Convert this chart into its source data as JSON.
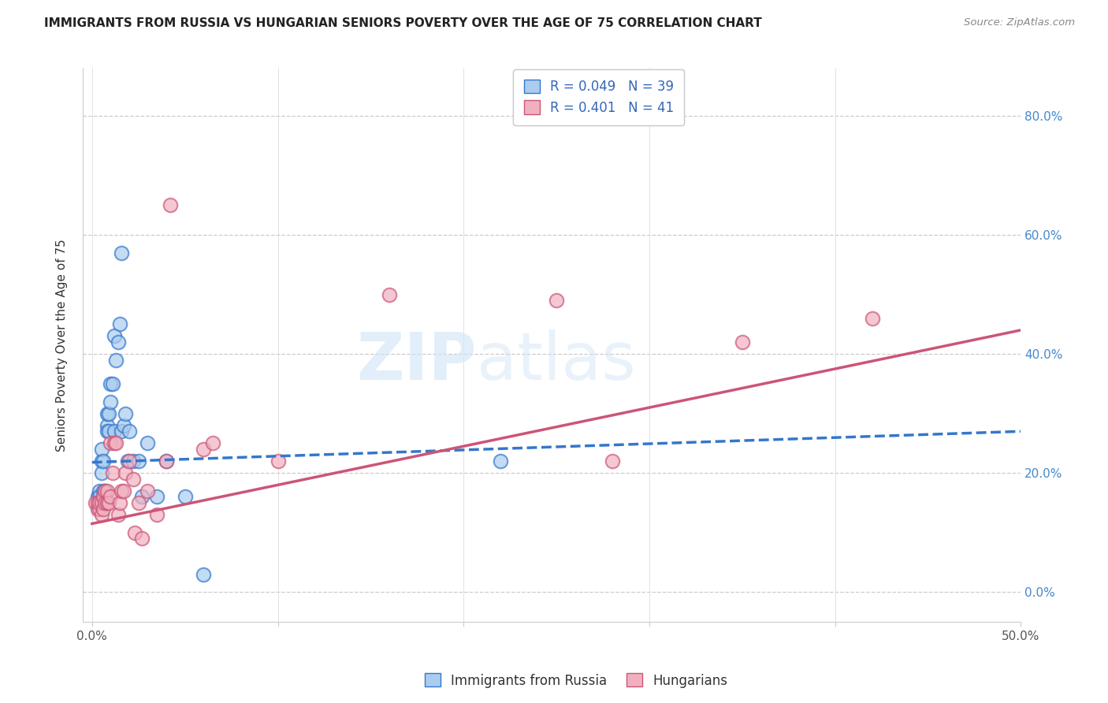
{
  "title": "IMMIGRANTS FROM RUSSIA VS HUNGARIAN SENIORS POVERTY OVER THE AGE OF 75 CORRELATION CHART",
  "source": "Source: ZipAtlas.com",
  "ylabel": "Seniors Poverty Over the Age of 75",
  "y_ticks": [
    0.0,
    0.2,
    0.4,
    0.6,
    0.8
  ],
  "y_tick_labels_right": [
    "0.0%",
    "20.0%",
    "40.0%",
    "60.0%",
    "80.0%"
  ],
  "x_ticks": [
    0.0,
    0.1,
    0.2,
    0.3,
    0.4,
    0.5
  ],
  "x_tick_labels": [
    "0.0%",
    "",
    "",
    "",
    "",
    "50.0%"
  ],
  "xlim": [
    -0.005,
    0.5
  ],
  "ylim": [
    -0.05,
    0.88
  ],
  "legend1_label": "R = 0.049   N = 39",
  "legend2_label": "R = 0.401   N = 41",
  "legend_bottom": [
    "Immigrants from Russia",
    "Hungarians"
  ],
  "blue_color": "#aaccee",
  "pink_color": "#f0b0c0",
  "blue_line_color": "#3377cc",
  "pink_line_color": "#cc5577",
  "russia_scatter_x": [
    0.003,
    0.004,
    0.004,
    0.005,
    0.005,
    0.005,
    0.006,
    0.006,
    0.007,
    0.007,
    0.007,
    0.008,
    0.008,
    0.008,
    0.009,
    0.009,
    0.01,
    0.01,
    0.011,
    0.012,
    0.012,
    0.013,
    0.014,
    0.015,
    0.016,
    0.016,
    0.017,
    0.018,
    0.019,
    0.02,
    0.022,
    0.025,
    0.027,
    0.03,
    0.035,
    0.04,
    0.05,
    0.06,
    0.22
  ],
  "russia_scatter_y": [
    0.16,
    0.17,
    0.16,
    0.22,
    0.24,
    0.2,
    0.17,
    0.22,
    0.15,
    0.16,
    0.17,
    0.28,
    0.3,
    0.27,
    0.3,
    0.27,
    0.35,
    0.32,
    0.35,
    0.43,
    0.27,
    0.39,
    0.42,
    0.45,
    0.27,
    0.57,
    0.28,
    0.3,
    0.22,
    0.27,
    0.22,
    0.22,
    0.16,
    0.25,
    0.16,
    0.22,
    0.16,
    0.03,
    0.22
  ],
  "hungarian_scatter_x": [
    0.002,
    0.003,
    0.003,
    0.004,
    0.004,
    0.005,
    0.005,
    0.006,
    0.006,
    0.007,
    0.007,
    0.008,
    0.008,
    0.009,
    0.01,
    0.01,
    0.011,
    0.012,
    0.013,
    0.014,
    0.015,
    0.016,
    0.017,
    0.018,
    0.02,
    0.022,
    0.023,
    0.025,
    0.027,
    0.03,
    0.035,
    0.04,
    0.042,
    0.06,
    0.065,
    0.1,
    0.16,
    0.25,
    0.28,
    0.35,
    0.42
  ],
  "hungarian_scatter_y": [
    0.15,
    0.14,
    0.15,
    0.14,
    0.15,
    0.13,
    0.15,
    0.14,
    0.16,
    0.15,
    0.17,
    0.15,
    0.17,
    0.15,
    0.16,
    0.25,
    0.2,
    0.25,
    0.25,
    0.13,
    0.15,
    0.17,
    0.17,
    0.2,
    0.22,
    0.19,
    0.1,
    0.15,
    0.09,
    0.17,
    0.13,
    0.22,
    0.65,
    0.24,
    0.25,
    0.22,
    0.5,
    0.49,
    0.22,
    0.42,
    0.46
  ],
  "russia_trend_x": [
    0.0,
    0.5
  ],
  "russia_trend_y": [
    0.218,
    0.27
  ],
  "hungarian_trend_x": [
    0.0,
    0.5
  ],
  "hungarian_trend_y": [
    0.115,
    0.44
  ]
}
